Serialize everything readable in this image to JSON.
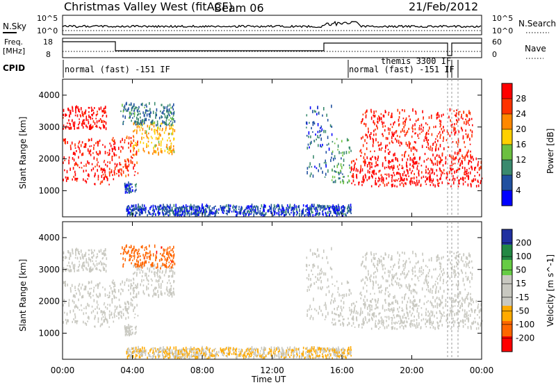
{
  "header": {
    "station": "Christmas Valley West (fitACF)",
    "beam": "Beam 06",
    "date": "21/Feb/2012"
  },
  "summary": {
    "nsky_label": "N.Sky",
    "nsky_ticks": [
      "10^5",
      "10^0"
    ],
    "nsearch_label": "N.Search",
    "nsearch_ticks": [
      "10^5",
      "10^0"
    ],
    "freq_label": "Freq.",
    "freq_unit": "[MHz]",
    "freq_ticks": [
      "18",
      "8"
    ],
    "nave_label": "Nave",
    "nave_ticks": [
      "60",
      "0"
    ],
    "cpid_label": "CPID",
    "cpid_mode": "normal (fast) -151 IF",
    "cpid_mode_2": "normal (fast) -151 IF",
    "cpid_mode_overlap": "themis 3300 IF"
  },
  "panels": {
    "power": {
      "ylabel": "Slant Range [km]",
      "cbar_label": "Power [dB]",
      "yticks": [
        "4000",
        "3000",
        "2000",
        "1000"
      ],
      "cbar_ticks": [
        "28",
        "24",
        "20",
        "16",
        "12",
        "8",
        "4"
      ]
    },
    "velocity": {
      "ylabel": "Slant Range [km]",
      "cbar_label": "Velocity [m s^-1]",
      "yticks": [
        "4000",
        "3000",
        "2000",
        "1000"
      ],
      "cbar_ticks": [
        "200",
        "100",
        "50",
        "15",
        "-15",
        "-50",
        "-100",
        "-200"
      ]
    }
  },
  "xaxis": {
    "label": "Time UT",
    "ticks": [
      "00:00",
      "04:00",
      "08:00",
      "12:00",
      "16:00",
      "20:00",
      "00:00"
    ]
  },
  "colors": {
    "power_scale": [
      "#0000ff",
      "#2050a0",
      "#3a8a6e",
      "#6cc040",
      "#ffd000",
      "#ff8800",
      "#ff3300",
      "#ff0000"
    ],
    "velocity_scale": [
      "#ff0000",
      "#ff6600",
      "#ffaa00",
      "#c8c8c0",
      "#c8c8c0",
      "#66cc44",
      "#228844",
      "#2030a0"
    ],
    "ground_scatter": "#c8c8c0"
  },
  "chart_data": {
    "type": "heatmap",
    "x_range_hours": [
      0,
      24
    ],
    "y_range_km": [
      180,
      4500
    ],
    "power_range_db": [
      0,
      30
    ],
    "velocity_range_ms": [
      -250,
      250
    ],
    "regions": [
      {
        "t0": 0.0,
        "t1": 3.0,
        "r0": 1150,
        "r1": 2600,
        "power": 28,
        "velocity": 0
      },
      {
        "t0": 0.0,
        "t1": 2.5,
        "r0": 2900,
        "r1": 3600,
        "power": 29,
        "velocity": 0
      },
      {
        "t0": 2.8,
        "t1": 4.3,
        "r0": 1400,
        "r1": 2700,
        "power": 26,
        "velocity": 0
      },
      {
        "t0": 4.0,
        "t1": 6.4,
        "r0": 2100,
        "r1": 3100,
        "power": 18,
        "velocity": 0
      },
      {
        "t0": 3.3,
        "t1": 6.4,
        "r0": 3000,
        "r1": 3700,
        "power": 8,
        "velocity": -160
      },
      {
        "t0": 3.5,
        "t1": 4.2,
        "r0": 900,
        "r1": 1200,
        "power": 6,
        "velocity": 0
      },
      {
        "t0": 3.6,
        "t1": 16.5,
        "r0": 180,
        "r1": 500,
        "power": 5,
        "velocity": -60
      },
      {
        "t0": 13.9,
        "t1": 15.4,
        "r0": 1400,
        "r1": 3600,
        "power": 6,
        "velocity": 0
      },
      {
        "t0": 15.4,
        "t1": 16.5,
        "r0": 1200,
        "r1": 2600,
        "power": 10,
        "velocity": 0
      },
      {
        "t0": 16.5,
        "t1": 24.0,
        "r0": 1100,
        "r1": 2000,
        "power": 29,
        "velocity": 0
      },
      {
        "t0": 17.0,
        "t1": 23.5,
        "r0": 2000,
        "r1": 3500,
        "power": 27,
        "velocity": 0
      }
    ]
  }
}
